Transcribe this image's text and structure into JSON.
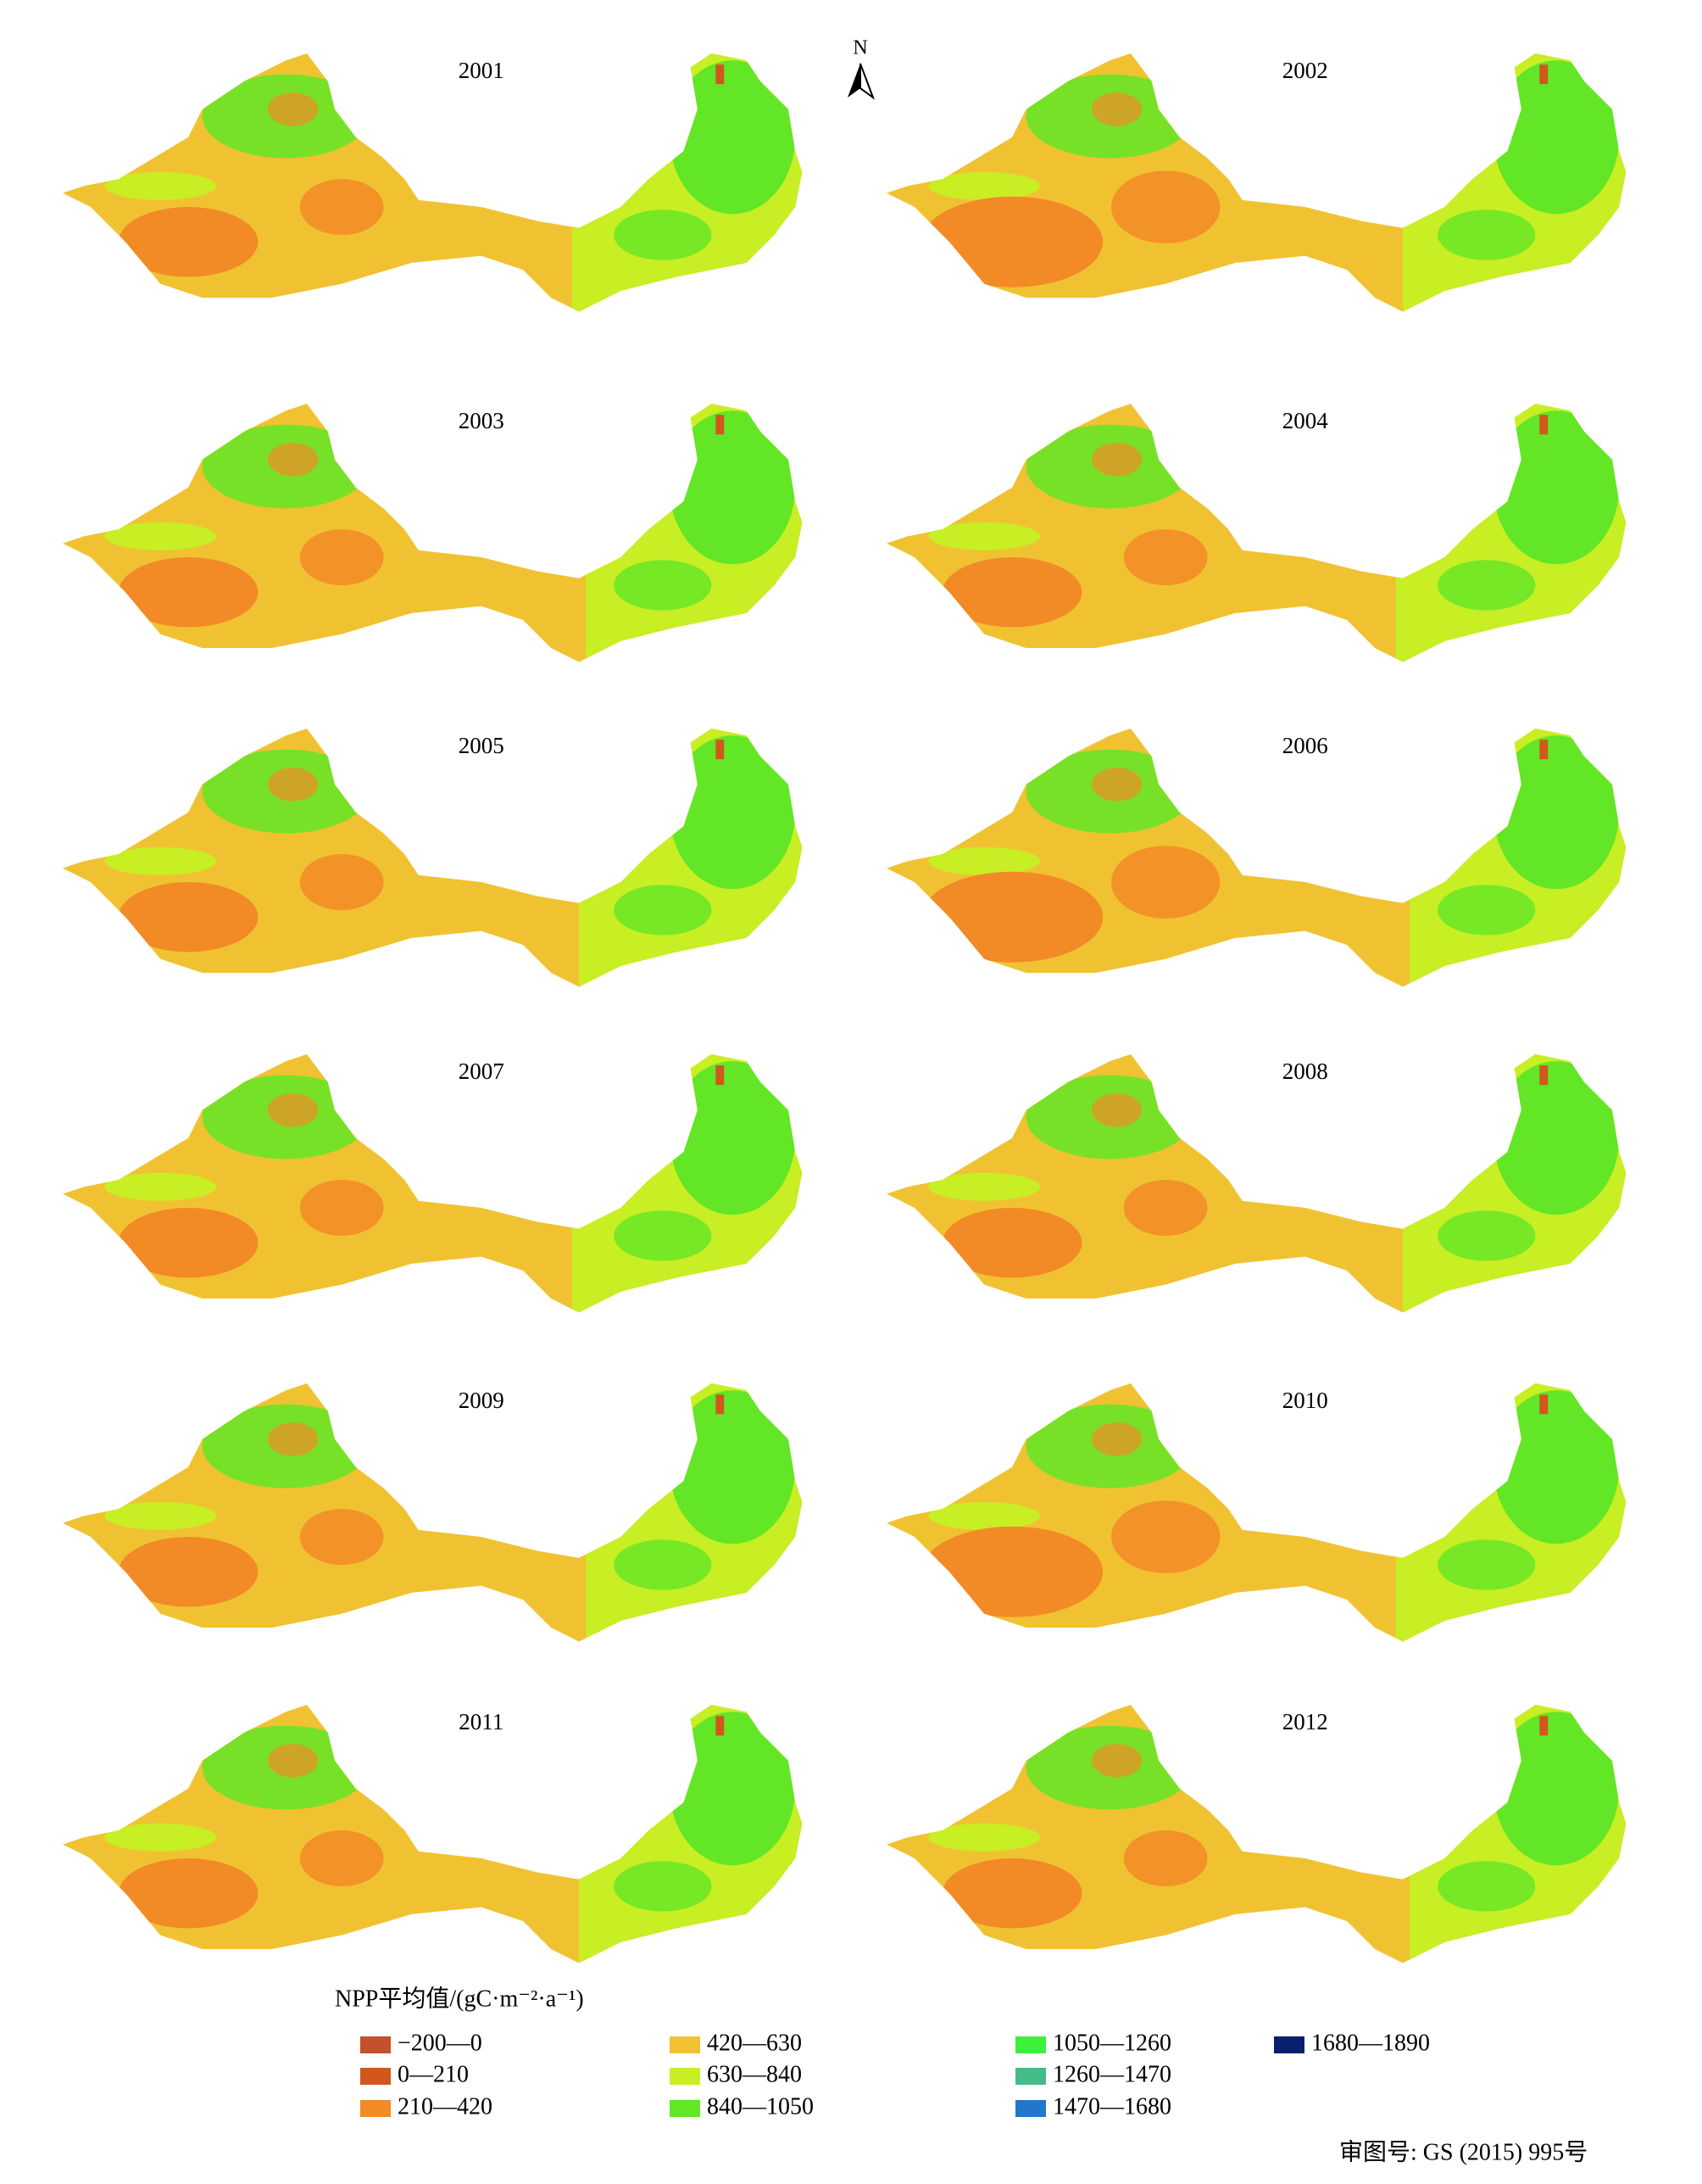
{
  "north_label": "N",
  "panels": [
    {
      "year": "2001"
    },
    {
      "year": "2002"
    },
    {
      "year": "2003"
    },
    {
      "year": "2004"
    },
    {
      "year": "2005"
    },
    {
      "year": "2006"
    },
    {
      "year": "2007"
    },
    {
      "year": "2008"
    },
    {
      "year": "2009"
    },
    {
      "year": "2010"
    },
    {
      "year": "2011"
    },
    {
      "year": "2012"
    }
  ],
  "legend": {
    "title": "NPP平均值/(gC·m⁻²·a⁻¹)",
    "items": [
      {
        "label": "−200—0",
        "color": "#c4502e"
      },
      {
        "label": "0—210",
        "color": "#d2571c"
      },
      {
        "label": "210—420",
        "color": "#f28a26"
      },
      {
        "label": "420—630",
        "color": "#f0c232"
      },
      {
        "label": "630—840",
        "color": "#c8ee24"
      },
      {
        "label": "840—1050",
        "color": "#62e626"
      },
      {
        "label": "1050—1260",
        "color": "#3cf03c"
      },
      {
        "label": "1260—1470",
        "color": "#44bb88"
      },
      {
        "label": "1470—1680",
        "color": "#2277cc"
      },
      {
        "label": "1680—1890",
        "color": "#0a1f6e"
      }
    ]
  },
  "approval": "审图号: GS (2015) 995号"
}
